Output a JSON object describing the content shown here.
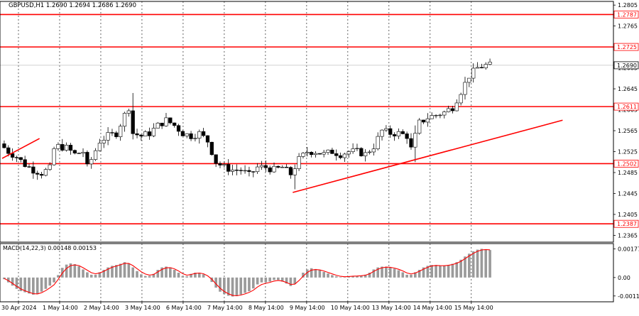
{
  "chart_data": [
    {
      "type": "candlestick",
      "title": "GBPUSD,H1  1.2690 1.2694 1.2686 1.2690",
      "symbol": "GBPUSD",
      "timeframe": "H1",
      "ohlc_header": {
        "open": 1.269,
        "high": 1.2694,
        "low": 1.2686,
        "close": 1.269
      },
      "y_ticks": [
        "1.2805",
        "1.2765",
        "1.2725",
        "1.2685",
        "1.2645",
        "1.2605",
        "1.2565",
        "1.2525",
        "1.2485",
        "1.2445",
        "1.2405",
        "1.2365"
      ],
      "ylim": [
        1.2352,
        1.2812
      ],
      "x_tick_labels": [
        "30 Apr 2024",
        "1 May 14:00",
        "2 May 14:00",
        "3 May 14:00",
        "6 May 14:00",
        "7 May 14:00",
        "8 May 14:00",
        "9 May 14:00",
        "10 May 14:00",
        "13 May 14:00",
        "14 May 14:00",
        "15 May 14:00"
      ],
      "levels": [
        {
          "price": 1.2787,
          "label": "1.2787",
          "color": "#ff0000"
        },
        {
          "price": 1.2725,
          "label": "1.2725",
          "color": "#ff0000"
        },
        {
          "price": 1.2611,
          "label": "1.2611",
          "color": "#ff0000"
        },
        {
          "price": 1.2502,
          "label": "1.2502",
          "color": "#ff0000"
        },
        {
          "price": 1.2387,
          "label": "1.2387",
          "color": "#ff0000"
        }
      ],
      "current_price": {
        "price": 1.269,
        "label": "1.2690"
      },
      "trendlines": [
        {
          "from": {
            "bar": 0,
            "price": 1.2512
          },
          "to": {
            "bar": 9,
            "price": 1.255
          },
          "color": "#ff0000"
        },
        {
          "from": {
            "bar": 70,
            "price": 1.2447
          },
          "to": {
            "bar": 135,
            "price": 1.2585
          },
          "color": "#ff0000"
        }
      ],
      "price_path": [
        [
          0,
          1.254
        ],
        [
          2,
          1.2525
        ],
        [
          4,
          1.2515
        ],
        [
          6,
          1.25
        ],
        [
          8,
          1.249
        ],
        [
          10,
          1.2484
        ],
        [
          12,
          1.2493
        ],
        [
          13,
          1.253
        ],
        [
          14,
          1.2535
        ],
        [
          16,
          1.2532
        ],
        [
          18,
          1.252
        ],
        [
          20,
          1.2525
        ],
        [
          21,
          1.2495
        ],
        [
          22,
          1.251
        ],
        [
          24,
          1.2545
        ],
        [
          26,
          1.2555
        ],
        [
          28,
          1.256
        ],
        [
          30,
          1.2595
        ],
        [
          31,
          1.261
        ],
        [
          32,
          1.256
        ],
        [
          34,
          1.2555
        ],
        [
          36,
          1.256
        ],
        [
          38,
          1.2575
        ],
        [
          40,
          1.2585
        ],
        [
          42,
          1.2575
        ],
        [
          44,
          1.256
        ],
        [
          46,
          1.2555
        ],
        [
          48,
          1.256
        ],
        [
          50,
          1.2545
        ],
        [
          52,
          1.2505
        ],
        [
          54,
          1.2495
        ],
        [
          56,
          1.249
        ],
        [
          58,
          1.249
        ],
        [
          60,
          1.248
        ],
        [
          62,
          1.2495
        ],
        [
          64,
          1.2495
        ],
        [
          66,
          1.249
        ],
        [
          68,
          1.2495
        ],
        [
          70,
          1.2482
        ],
        [
          72,
          1.251
        ],
        [
          74,
          1.2525
        ],
        [
          76,
          1.2525
        ],
        [
          78,
          1.252
        ],
        [
          80,
          1.2525
        ],
        [
          82,
          1.252
        ],
        [
          84,
          1.2525
        ],
        [
          86,
          1.2525
        ],
        [
          88,
          1.252
        ],
        [
          90,
          1.2535
        ],
        [
          92,
          1.2565
        ],
        [
          94,
          1.256
        ],
        [
          96,
          1.256
        ],
        [
          98,
          1.2555
        ],
        [
          99,
          1.253
        ],
        [
          101,
          1.258
        ],
        [
          103,
          1.259
        ],
        [
          105,
          1.2595
        ],
        [
          107,
          1.26
        ],
        [
          109,
          1.261
        ],
        [
          111,
          1.264
        ],
        [
          113,
          1.267
        ],
        [
          115,
          1.2685
        ],
        [
          117,
          1.269
        ]
      ],
      "spikes": [
        {
          "bar": 31,
          "high": 1.2637
        },
        {
          "bar": 99,
          "high": 1.2575,
          "low": 1.2505
        },
        {
          "bar": 70,
          "low": 1.2453
        }
      ],
      "bar_count": 118
    },
    {
      "type": "histogram",
      "title": "MACD(14,22,3) 0.00148 0.00153",
      "indicator": "MACD",
      "params": [
        14,
        22,
        3
      ],
      "last_values": [
        0.00148,
        0.00153
      ],
      "y_ticks": [
        "0.00177",
        "0.00",
        "-0.00114"
      ],
      "ylim": [
        -0.0015,
        0.0021
      ],
      "signal_color": "#ff0000",
      "histogram_path": [
        [
          0,
          0.0
        ],
        [
          4,
          -0.0008
        ],
        [
          8,
          -0.0011
        ],
        [
          10,
          -0.0008
        ],
        [
          13,
          -0.0002
        ],
        [
          14,
          0.0005
        ],
        [
          16,
          0.0009
        ],
        [
          18,
          0.0008
        ],
        [
          20,
          0.0004
        ],
        [
          22,
          0.0001
        ],
        [
          24,
          0.0004
        ],
        [
          26,
          0.0007
        ],
        [
          28,
          0.0008
        ],
        [
          30,
          0.001
        ],
        [
          32,
          0.0005
        ],
        [
          34,
          0.0001
        ],
        [
          36,
          0.0001
        ],
        [
          38,
          0.0006
        ],
        [
          40,
          0.0007
        ],
        [
          42,
          0.0004
        ],
        [
          44,
          0.0
        ],
        [
          46,
          0.0003
        ],
        [
          48,
          0.0003
        ],
        [
          50,
          -0.0001
        ],
        [
          52,
          -0.0008
        ],
        [
          54,
          -0.0011
        ],
        [
          56,
          -0.0012
        ],
        [
          58,
          -0.001
        ],
        [
          60,
          -0.0008
        ],
        [
          62,
          -0.0003
        ],
        [
          64,
          -0.0003
        ],
        [
          66,
          -0.0001
        ],
        [
          68,
          -0.0003
        ],
        [
          70,
          -0.0006
        ],
        [
          72,
          0.0002
        ],
        [
          74,
          0.0006
        ],
        [
          76,
          0.0005
        ],
        [
          78,
          0.0003
        ],
        [
          80,
          0.0001
        ],
        [
          82,
          0.0
        ],
        [
          84,
          0.0001
        ],
        [
          86,
          0.0001
        ],
        [
          88,
          0.0002
        ],
        [
          90,
          0.0006
        ],
        [
          92,
          0.0007
        ],
        [
          94,
          0.0006
        ],
        [
          96,
          0.0004
        ],
        [
          98,
          0.0001
        ],
        [
          100,
          0.0004
        ],
        [
          102,
          0.0007
        ],
        [
          104,
          0.0008
        ],
        [
          106,
          0.0007
        ],
        [
          108,
          0.0008
        ],
        [
          110,
          0.001
        ],
        [
          112,
          0.0014
        ],
        [
          114,
          0.0017
        ],
        [
          116,
          0.0018
        ],
        [
          117,
          0.0017
        ]
      ]
    }
  ]
}
